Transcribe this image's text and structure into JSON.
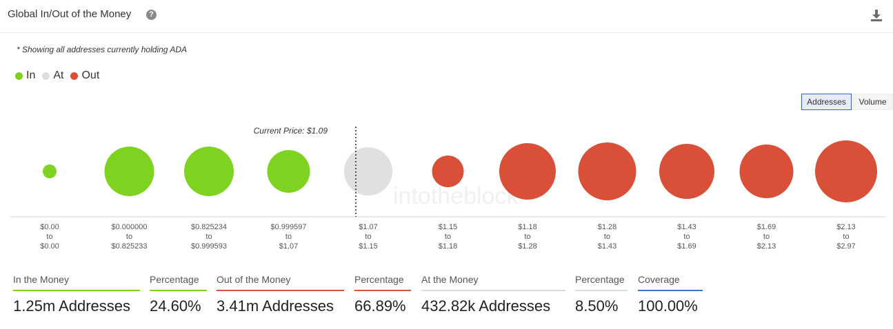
{
  "header": {
    "title": "Global In/Out of the Money",
    "help_icon": "question-circle-icon",
    "download_icon": "download-icon"
  },
  "note": "* Showing all addresses currently holding ADA",
  "legend": [
    {
      "label": "In",
      "color": "#7ed321"
    },
    {
      "label": "At",
      "color": "#dddddd"
    },
    {
      "label": "Out",
      "color": "#d94f38"
    }
  ],
  "toggles": {
    "addresses": "Addresses",
    "volume": "Volume",
    "selected": "Addresses"
  },
  "watermark": "intotheblock",
  "chart_data": {
    "type": "bubble",
    "current_price_label": "Current Price: $1.09",
    "categories": [
      {
        "from": "$0.00",
        "to_word": "to",
        "to": "$0.00",
        "status": "In",
        "size": 10
      },
      {
        "from": "$0.000000",
        "to_word": "to",
        "to": "$0.825233",
        "status": "In",
        "size": 36
      },
      {
        "from": "$0.825234",
        "to_word": "to",
        "to": "$0.999593",
        "status": "In",
        "size": 36
      },
      {
        "from": "$0.999597",
        "to_word": "to",
        "to": "$1.07",
        "status": "In",
        "size": 31
      },
      {
        "from": "$1.07",
        "to_word": "to",
        "to": "$1.15",
        "status": "At",
        "size": 35
      },
      {
        "from": "$1.15",
        "to_word": "to",
        "to": "$1.18",
        "status": "Out",
        "size": 23
      },
      {
        "from": "$1.18",
        "to_word": "to",
        "to": "$1.28",
        "status": "Out",
        "size": 41
      },
      {
        "from": "$1.28",
        "to_word": "to",
        "to": "$1.43",
        "status": "Out",
        "size": 42
      },
      {
        "from": "$1.43",
        "to_word": "to",
        "to": "$1.69",
        "status": "Out",
        "size": 40
      },
      {
        "from": "$1.69",
        "to_word": "to",
        "to": "$2.13",
        "status": "Out",
        "size": 39
      },
      {
        "from": "$2.13",
        "to_word": "to",
        "to": "$2.97",
        "status": "Out",
        "size": 45
      }
    ],
    "colors": {
      "In": "#7ed321",
      "At": "#e0e0e0",
      "Out": "#d94f38"
    }
  },
  "stats": [
    {
      "label": "In the Money",
      "value": "1.25m Addresses",
      "color": "#7ed321"
    },
    {
      "label": "Percentage",
      "value": "24.60%",
      "color": "#7ed321"
    },
    {
      "label": "Out of the Money",
      "value": "3.41m Addresses",
      "color": "#d94f38"
    },
    {
      "label": "Percentage",
      "value": "66.89%",
      "color": "#d94f38"
    },
    {
      "label": "At the Money",
      "value": "432.82k Addresses",
      "color": "#dddddd"
    },
    {
      "label": "Percentage",
      "value": "8.50%",
      "color": "#dddddd"
    },
    {
      "label": "Coverage",
      "value": "100.00%",
      "color": "#3a73d0"
    }
  ]
}
